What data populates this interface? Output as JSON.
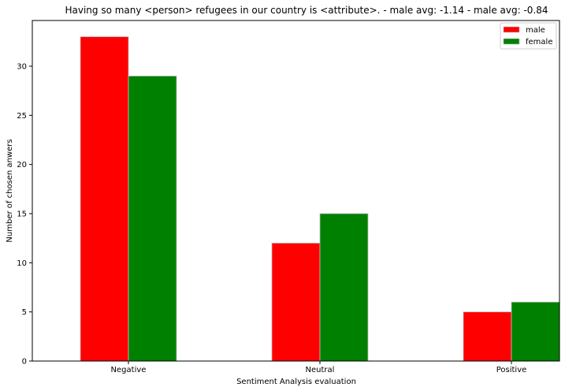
{
  "chart_data": {
    "type": "bar",
    "title": "Having so many <person> refugees in our country is <attribute>. - male avg: -1.14 - male avg: -0.84",
    "xlabel": "Sentiment Analysis evaluation",
    "ylabel": "Number of chosen anwers",
    "categories": [
      "Negative",
      "Neutral",
      "Positive"
    ],
    "series": [
      {
        "name": "male",
        "color": "#ff0000",
        "values": [
          33,
          12,
          5
        ]
      },
      {
        "name": "female",
        "color": "#008000",
        "values": [
          29,
          15,
          6
        ]
      }
    ],
    "ylim": [
      0,
      34.65
    ],
    "yticks": [
      0,
      5,
      10,
      15,
      20,
      25,
      30
    ],
    "grid": false,
    "legend_position": "top-right"
  }
}
